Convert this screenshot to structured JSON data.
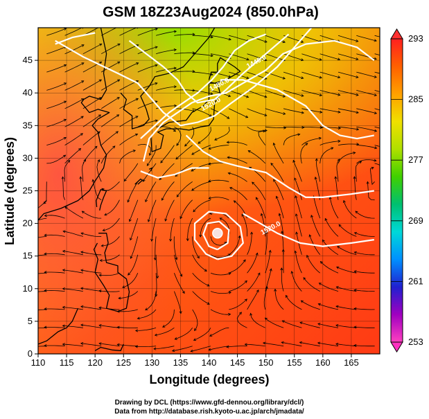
{
  "title": "GSM 18Z23Aug2024 (850.0hPa)",
  "x_axis": {
    "label": "Longitude (degrees)",
    "range": [
      110,
      170
    ],
    "ticks": [
      "110",
      "115",
      "120",
      "125",
      "130",
      "135",
      "140",
      "145",
      "150",
      "155",
      "160",
      "165"
    ],
    "tick_values": [
      110,
      115,
      120,
      125,
      130,
      135,
      140,
      145,
      150,
      155,
      160,
      165
    ]
  },
  "y_axis": {
    "label": "Latitude (degrees)",
    "range": [
      0,
      50
    ],
    "ticks": [
      "0",
      "5",
      "10",
      "15",
      "20",
      "25",
      "30",
      "35",
      "40",
      "45"
    ],
    "tick_values": [
      0,
      5,
      10,
      15,
      20,
      25,
      30,
      35,
      40,
      45
    ]
  },
  "colorbar": {
    "max_label": "293",
    "labels": [
      "285",
      "277",
      "269",
      "261"
    ],
    "label_values": [
      285,
      277,
      269,
      261
    ],
    "min_label": "253",
    "range": [
      253,
      293
    ],
    "colors": [
      "#ff40c0",
      "#a000c0",
      "#2020d0",
      "#0090ff",
      "#00d8d8",
      "#00c070",
      "#40d000",
      "#b0e000",
      "#f0e000",
      "#ffa000",
      "#ff6000",
      "#ff2020"
    ]
  },
  "contours": {
    "color": "#ffffff",
    "labels": [
      {
        "text": "1440.0",
        "lon": 148.5,
        "lat": 44.5
      },
      {
        "text": "1480.0",
        "lon": 142.0,
        "lat": 41.0
      },
      {
        "text": "1520.0",
        "lon": 140.5,
        "lat": 38.0
      },
      {
        "text": "1520.0",
        "lon": 151.0,
        "lat": 19.0
      }
    ]
  },
  "typhoon_center": {
    "lon": 141.5,
    "lat": 18.5
  },
  "credits": {
    "line1": "Drawing by DCL (https://www.gfd-dennou.org/library/dcl/)",
    "line2": "Data from http://database.rish.kyoto-u.ac.jp/arch/jmadata/"
  }
}
